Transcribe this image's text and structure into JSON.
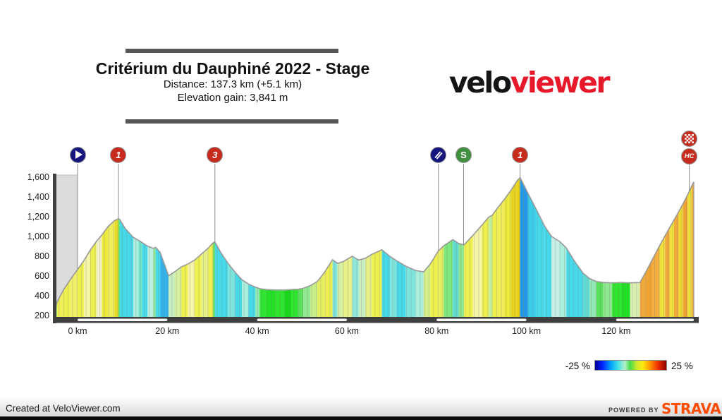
{
  "header": {
    "title": "Critérium du Dauphiné 2022 - Stage",
    "distance_line": "Distance: 137.3 km (+5.1 km)",
    "elevation_line": "Elevation gain: 3,841 m"
  },
  "logo": {
    "part1": "velo",
    "part2": "viewer",
    "part1_color": "#141414",
    "part2_color": "#e8182b"
  },
  "legend": {
    "min_label": "-25 %",
    "max_label": "25 %"
  },
  "footer": {
    "created_at": "Created at VeloViewer.com",
    "powered_by": "POWERED BY",
    "strava": "STRAVA",
    "strava_color": "#fc4c02"
  },
  "axes": {
    "y_ticks": [
      {
        "v": 1600,
        "label": "1,600"
      },
      {
        "v": 1400,
        "label": "1,400"
      },
      {
        "v": 1200,
        "label": "1,200"
      },
      {
        "v": 1000,
        "label": "1,000"
      },
      {
        "v": 800,
        "label": "800"
      },
      {
        "v": 600,
        "label": "600"
      },
      {
        "v": 400,
        "label": "400"
      },
      {
        "v": 200,
        "label": "200"
      }
    ],
    "x_ticks": [
      {
        "v": 0,
        "label": "0 km"
      },
      {
        "v": 20,
        "label": "20 km"
      },
      {
        "v": 40,
        "label": "40 km"
      },
      {
        "v": 60,
        "label": "60 km"
      },
      {
        "v": 80,
        "label": "80 km"
      },
      {
        "v": 100,
        "label": "100 km"
      },
      {
        "v": 120,
        "label": "120 km"
      }
    ]
  },
  "markers": [
    {
      "kind": "start",
      "km": 0,
      "icon": "play-icon",
      "label": ""
    },
    {
      "kind": "climb",
      "km": 9.1,
      "label": "1",
      "category": "1"
    },
    {
      "kind": "climb",
      "km": 30.6,
      "label": "3",
      "category": "3"
    },
    {
      "kind": "feed",
      "km": 80.4,
      "icon": "fork-icon",
      "label": ""
    },
    {
      "kind": "sprint",
      "km": 86.0,
      "label": "S"
    },
    {
      "kind": "climb",
      "km": 98.6,
      "label": "1",
      "category": "1"
    },
    {
      "kind": "finish",
      "km": 136.3,
      "label": "HC",
      "icon": "checkered-flag-icon"
    }
  ],
  "chart_data": {
    "type": "area",
    "title": "Critérium du Dauphiné 2022 - Stage elevation profile",
    "x_unit": "km",
    "y_unit": "m",
    "x_range": [
      -5.1,
      137.3
    ],
    "y_axis": {
      "min": 200,
      "max": 1600,
      "tick_step": 200
    },
    "distance_km": 137.3,
    "lead_in_km": 5.1,
    "elevation_gain_m": 3841,
    "gradient_scale": {
      "min_pct": -25,
      "max_pct": 25
    },
    "lead_in": {
      "from_km": -5.1,
      "to_km": 0,
      "overlay_color": "#dcdcdc",
      "edge_color": "#bdbdbd"
    },
    "axis_stripes_km": [
      [
        0,
        20
      ],
      [
        40,
        60
      ],
      [
        80,
        100
      ],
      [
        120,
        137.3
      ]
    ],
    "colors": {
      "axis_bar": "#3f3f3f",
      "axis_stripe": "#f8f8f8",
      "outline": "#9a9a9a",
      "marker_line": "#8c8c8c",
      "badge_red": "#c62b1d",
      "badge_navy": "#15157e",
      "badge_green": "#3f8f3f"
    },
    "profile": [
      [
        -5.1,
        230,
        null
      ],
      [
        -4.6,
        335,
        "#7de87d"
      ],
      [
        -3.2,
        455,
        "#f0ef56"
      ],
      [
        -1.6,
        565,
        "#eef04e"
      ],
      [
        0,
        665,
        "#f2f06a"
      ],
      [
        1.4,
        755,
        "#eef04e"
      ],
      [
        2.8,
        860,
        "#f6f4a8"
      ],
      [
        4.2,
        950,
        "#eef04e"
      ],
      [
        5.4,
        1015,
        "#f1f0c9"
      ],
      [
        6.8,
        1100,
        "#ece93a"
      ],
      [
        8.2,
        1160,
        "#f0ee58"
      ],
      [
        9.1,
        1180,
        "#e8dc28"
      ],
      [
        9.4,
        1172,
        "#5ae05a"
      ],
      [
        10.6,
        1082,
        "#46d9ea"
      ],
      [
        12.4,
        992,
        "#46d9ea"
      ],
      [
        13.6,
        960,
        "#aaeedd"
      ],
      [
        14.4,
        938,
        "#6fe6c9"
      ],
      [
        15.6,
        902,
        "#46d9ea"
      ],
      [
        16.9,
        880,
        "#bceee0"
      ],
      [
        17.4,
        890,
        "#8fe88f"
      ],
      [
        18.4,
        838,
        "#46d9ea"
      ],
      [
        20.3,
        602,
        "#32b4ea"
      ],
      [
        21.6,
        642,
        "#c9eec2"
      ],
      [
        23.1,
        692,
        "#d6f0a2"
      ],
      [
        24.6,
        722,
        "#eef04e"
      ],
      [
        26.1,
        762,
        "#f6f4a8"
      ],
      [
        27.6,
        822,
        "#eef04e"
      ],
      [
        29.1,
        882,
        "#e6ef88"
      ],
      [
        30.2,
        936,
        "#eef04e"
      ],
      [
        30.6,
        945,
        "#5ad85a"
      ],
      [
        31.9,
        838,
        "#46d9ea"
      ],
      [
        33.5,
        730,
        "#46d9ea"
      ],
      [
        35.1,
        638,
        "#7ee5dd"
      ],
      [
        36.6,
        563,
        "#46d9ea"
      ],
      [
        38.1,
        518,
        "#aaeedd"
      ],
      [
        39.6,
        488,
        "#46d9ea"
      ],
      [
        40.6,
        472,
        "#90e8b2"
      ],
      [
        42.1,
        462,
        "#2ee62e"
      ],
      [
        44.1,
        459,
        "#22e022"
      ],
      [
        46.1,
        458,
        "#2ee62e"
      ],
      [
        47.6,
        462,
        "#19d819"
      ],
      [
        49.1,
        466,
        "#2ee62e"
      ],
      [
        50.3,
        476,
        "#5ae05a"
      ],
      [
        51.9,
        504,
        "#90e890"
      ],
      [
        53.4,
        543,
        "#c9ee88"
      ],
      [
        55.1,
        642,
        "#e6ef62"
      ],
      [
        56.8,
        765,
        "#eef04e"
      ],
      [
        57.9,
        728,
        "#7ee5dd"
      ],
      [
        59.1,
        744,
        "#d6f0a2"
      ],
      [
        61.2,
        800,
        "#e6ef88"
      ],
      [
        62.6,
        762,
        "#8de8da"
      ],
      [
        64.1,
        779,
        "#c9eec2"
      ],
      [
        65.6,
        820,
        "#e6ef88"
      ],
      [
        67.8,
        865,
        "#eef04e"
      ],
      [
        69.6,
        798,
        "#46d9ea"
      ],
      [
        71.1,
        754,
        "#7ee5dd"
      ],
      [
        73.1,
        700,
        "#46d9ea"
      ],
      [
        75.3,
        656,
        "#7ee5dd"
      ],
      [
        77.1,
        642,
        "#aaeedd"
      ],
      [
        78.6,
        722,
        "#d6f088"
      ],
      [
        80.4,
        855,
        "#eef04e"
      ],
      [
        81.6,
        906,
        "#e6ef62"
      ],
      [
        83.6,
        968,
        "#7de87d"
      ],
      [
        84.9,
        930,
        "#60dcd2"
      ],
      [
        86.1,
        915,
        "#8fe88f"
      ],
      [
        88.1,
        1012,
        "#eef04e"
      ],
      [
        90.1,
        1115,
        "#f6f4a8"
      ],
      [
        91.6,
        1196,
        "#eef04e"
      ],
      [
        92.4,
        1215,
        "#c2ee9c"
      ],
      [
        93.6,
        1290,
        "#eef04e"
      ],
      [
        95.1,
        1376,
        "#f0ee58"
      ],
      [
        96.6,
        1470,
        "#ece93a"
      ],
      [
        97.9,
        1562,
        "#e8d41e"
      ],
      [
        98.6,
        1596,
        "#e9cf12"
      ],
      [
        100.3,
        1442,
        "#2598e8"
      ],
      [
        102.1,
        1282,
        "#3acdea"
      ],
      [
        104.1,
        1102,
        "#46d9ea"
      ],
      [
        105.6,
        1000,
        "#46d9ea"
      ],
      [
        107.4,
        950,
        "#c6f0e6"
      ],
      [
        108.9,
        884,
        "#aaeedd"
      ],
      [
        110.6,
        758,
        "#46d9ea"
      ],
      [
        112.6,
        630,
        "#46d9ea"
      ],
      [
        114.1,
        574,
        "#60dcd2"
      ],
      [
        115.6,
        544,
        "#90e8b2"
      ],
      [
        117.1,
        535,
        "#5ae05a"
      ],
      [
        119.1,
        531,
        "#8fe88f"
      ],
      [
        121.1,
        534,
        "#2ee62e"
      ],
      [
        123.1,
        531,
        "#22e022"
      ],
      [
        125.3,
        534,
        "#d9f0b2"
      ],
      [
        126.6,
        640,
        "#f2a93b"
      ],
      [
        128.1,
        770,
        "#f0a432"
      ],
      [
        129.6,
        900,
        "#f2ae3e"
      ],
      [
        130.9,
        1008,
        "#eede3a"
      ],
      [
        131.9,
        1088,
        "#f2a93b"
      ],
      [
        132.9,
        1168,
        "#eee23a"
      ],
      [
        133.9,
        1248,
        "#f2a93b"
      ],
      [
        134.9,
        1330,
        "#ecd92e"
      ],
      [
        135.9,
        1420,
        "#f0a432"
      ],
      [
        136.9,
        1515,
        "#eede3a"
      ],
      [
        137.3,
        1552,
        "#f2a93b"
      ]
    ]
  }
}
